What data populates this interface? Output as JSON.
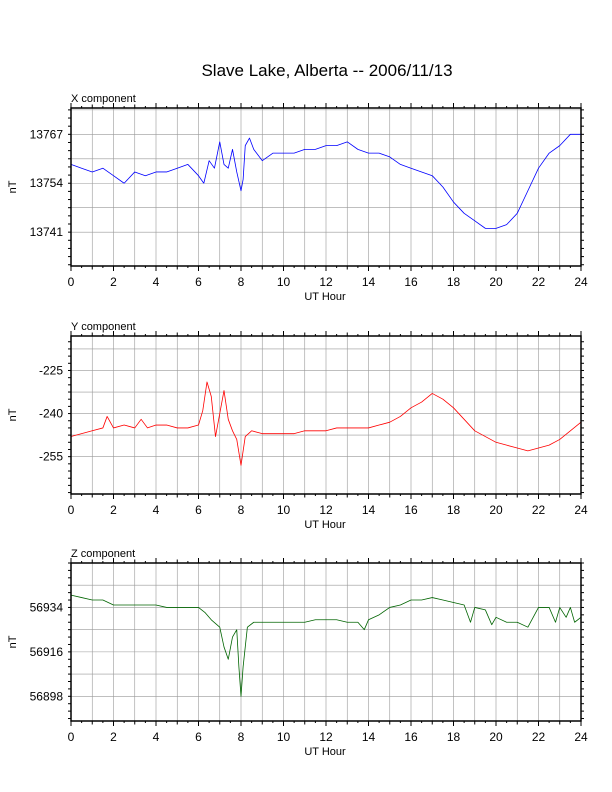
{
  "figure": {
    "title": "Slave Lake, Alberta -- 2006/11/13"
  },
  "chart_data": [
    {
      "type": "line",
      "panel_label": "X component",
      "xlabel": "UT Hour",
      "ylabel": "nT",
      "xlim": [
        0,
        24
      ],
      "ylim": [
        13732,
        13774
      ],
      "xticks": [
        0,
        2,
        4,
        6,
        8,
        10,
        12,
        14,
        16,
        18,
        20,
        22,
        24
      ],
      "yticks": [
        13767,
        13754,
        13741
      ],
      "grid": true,
      "series": [
        {
          "color": "#0000ff",
          "x": [
            0,
            0.5,
            1,
            1.5,
            2,
            2.5,
            3,
            3.5,
            4,
            4.5,
            5,
            5.5,
            6,
            6.25,
            6.5,
            6.75,
            7,
            7.2,
            7.4,
            7.6,
            7.8,
            8,
            8.1,
            8.2,
            8.4,
            8.6,
            9,
            9.5,
            10,
            10.5,
            11,
            11.5,
            12,
            12.5,
            13,
            13.5,
            14,
            14.5,
            15,
            15.5,
            16,
            16.5,
            17,
            17.5,
            18,
            18.5,
            19,
            19.5,
            20,
            20.5,
            21,
            21.5,
            22,
            22.5,
            23,
            23.5,
            24
          ],
          "values": [
            13759,
            13758,
            13757,
            13758,
            13756,
            13754,
            13757,
            13756,
            13757,
            13757,
            13758,
            13759,
            13756,
            13754,
            13760,
            13758,
            13765,
            13759,
            13758,
            13763,
            13757,
            13752,
            13755,
            13764,
            13766,
            13763,
            13760,
            13762,
            13762,
            13762,
            13763,
            13763,
            13764,
            13764,
            13765,
            13763,
            13762,
            13762,
            13761,
            13759,
            13758,
            13757,
            13756,
            13753,
            13749,
            13746,
            13744,
            13742,
            13742,
            13743,
            13746,
            13752,
            13758,
            13762,
            13764,
            13767,
            13767
          ]
        }
      ]
    },
    {
      "type": "line",
      "panel_label": "Y component",
      "xlabel": "UT Hour",
      "ylabel": "nT",
      "xlim": [
        0,
        24
      ],
      "ylim": [
        -268,
        -213
      ],
      "xticks": [
        0,
        2,
        4,
        6,
        8,
        10,
        12,
        14,
        16,
        18,
        20,
        22,
        24
      ],
      "yticks": [
        -225,
        -240,
        -255
      ],
      "grid": true,
      "series": [
        {
          "color": "#ff0000",
          "x": [
            0,
            0.5,
            1,
            1.5,
            1.7,
            2,
            2.5,
            3,
            3.3,
            3.6,
            4,
            4.5,
            5,
            5.5,
            6,
            6.2,
            6.4,
            6.6,
            6.8,
            7,
            7.2,
            7.4,
            7.6,
            7.8,
            8,
            8.2,
            8.5,
            9,
            9.5,
            10,
            10.5,
            11,
            11.5,
            12,
            12.5,
            13,
            13.5,
            14,
            14.5,
            15,
            15.5,
            16,
            16.5,
            17,
            17.5,
            18,
            18.5,
            19,
            19.5,
            20,
            20.5,
            21,
            21.5,
            22,
            22.5,
            23,
            23.5,
            24
          ],
          "values": [
            -248,
            -247,
            -246,
            -245,
            -241,
            -245,
            -244,
            -245,
            -242,
            -245,
            -244,
            -244,
            -245,
            -245,
            -244,
            -239,
            -229,
            -234,
            -248,
            -240,
            -232,
            -242,
            -246,
            -249,
            -258,
            -248,
            -246,
            -247,
            -247,
            -247,
            -247,
            -246,
            -246,
            -246,
            -245,
            -245,
            -245,
            -245,
            -244,
            -243,
            -241,
            -238,
            -236,
            -233,
            -235,
            -238,
            -242,
            -246,
            -248,
            -250,
            -251,
            -252,
            -253,
            -252,
            -251,
            -249,
            -246,
            -243
          ]
        }
      ]
    },
    {
      "type": "line",
      "panel_label": "Z component",
      "xlabel": "UT Hour",
      "ylabel": "nT",
      "xlim": [
        0,
        24
      ],
      "ylim": [
        56888,
        56952
      ],
      "xticks": [
        0,
        2,
        4,
        6,
        8,
        10,
        12,
        14,
        16,
        18,
        20,
        22,
        24
      ],
      "yticks": [
        56934,
        56916,
        56898
      ],
      "grid": true,
      "series": [
        {
          "color": "#006400",
          "x": [
            0,
            0.5,
            1,
            1.5,
            2,
            2.5,
            3,
            3.5,
            4,
            4.5,
            5,
            5.5,
            6,
            6.3,
            6.6,
            7,
            7.2,
            7.4,
            7.6,
            7.8,
            7.9,
            8,
            8.1,
            8.3,
            8.6,
            9,
            9.5,
            10,
            10.5,
            11,
            11.5,
            12,
            12.5,
            13,
            13.5,
            13.8,
            14,
            14.5,
            15,
            15.5,
            16,
            16.5,
            17,
            17.5,
            18,
            18.5,
            18.8,
            19,
            19.5,
            19.8,
            20,
            20.5,
            21,
            21.5,
            22,
            22.5,
            22.8,
            23,
            23.3,
            23.5,
            23.7,
            24
          ],
          "values": [
            56939,
            56938,
            56937,
            56937,
            56935,
            56935,
            56935,
            56935,
            56935,
            56934,
            56934,
            56934,
            56934,
            56932,
            56929,
            56926,
            56918,
            56913,
            56922,
            56925,
            56910,
            56898,
            56910,
            56926,
            56928,
            56928,
            56928,
            56928,
            56928,
            56928,
            56929,
            56929,
            56929,
            56928,
            56928,
            56925,
            56929,
            56931,
            56934,
            56935,
            56937,
            56937,
            56938,
            56937,
            56936,
            56935,
            56928,
            56934,
            56933,
            56927,
            56930,
            56928,
            56928,
            56926,
            56934,
            56934,
            56928,
            56934,
            56930,
            56934,
            56928,
            56930
          ]
        }
      ]
    }
  ]
}
